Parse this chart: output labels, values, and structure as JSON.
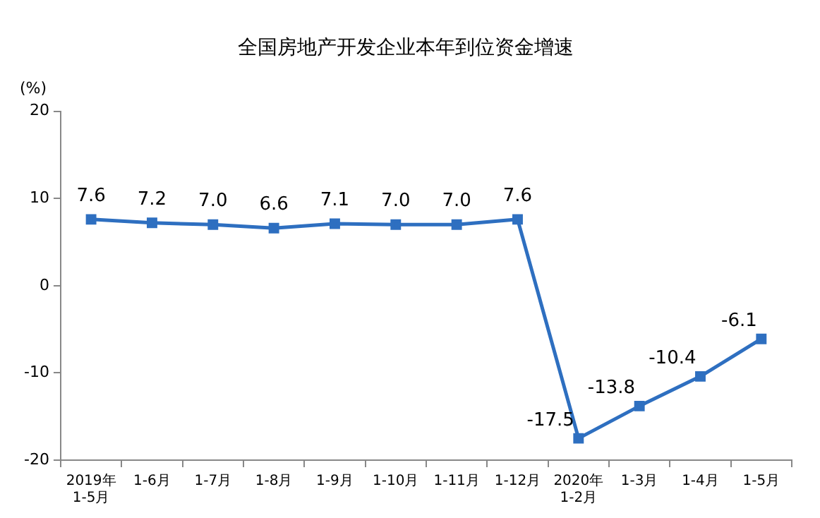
{
  "chart_data": {
    "type": "line",
    "title": "全国房地产开发企业本年到位资金增速",
    "ylabel": "(%)",
    "categories": [
      "2019年\n1-5月",
      "1-6月",
      "1-7月",
      "1-8月",
      "1-9月",
      "1-10月",
      "1-11月",
      "1-12月",
      "2020年\n1-2月",
      "1-3月",
      "1-4月",
      "1-5月"
    ],
    "series": [
      {
        "color": "#2e6fc0",
        "values": [
          7.6,
          7.2,
          7.0,
          6.6,
          7.1,
          7.0,
          7.0,
          7.6,
          -17.5,
          -13.8,
          -10.4,
          -6.1
        ],
        "value_labels": [
          "7.6",
          "7.2",
          "7.0",
          "6.6",
          "7.1",
          "7.0",
          "7.0",
          "7.6",
          "-17.5",
          "-13.8",
          "-10.4",
          "-6.1"
        ]
      }
    ],
    "ylim": [
      -20,
      20
    ],
    "yticks": [
      -20,
      -10,
      0,
      10,
      20
    ],
    "grid": false,
    "legend": false,
    "marker": "square",
    "line_style": "solid"
  }
}
